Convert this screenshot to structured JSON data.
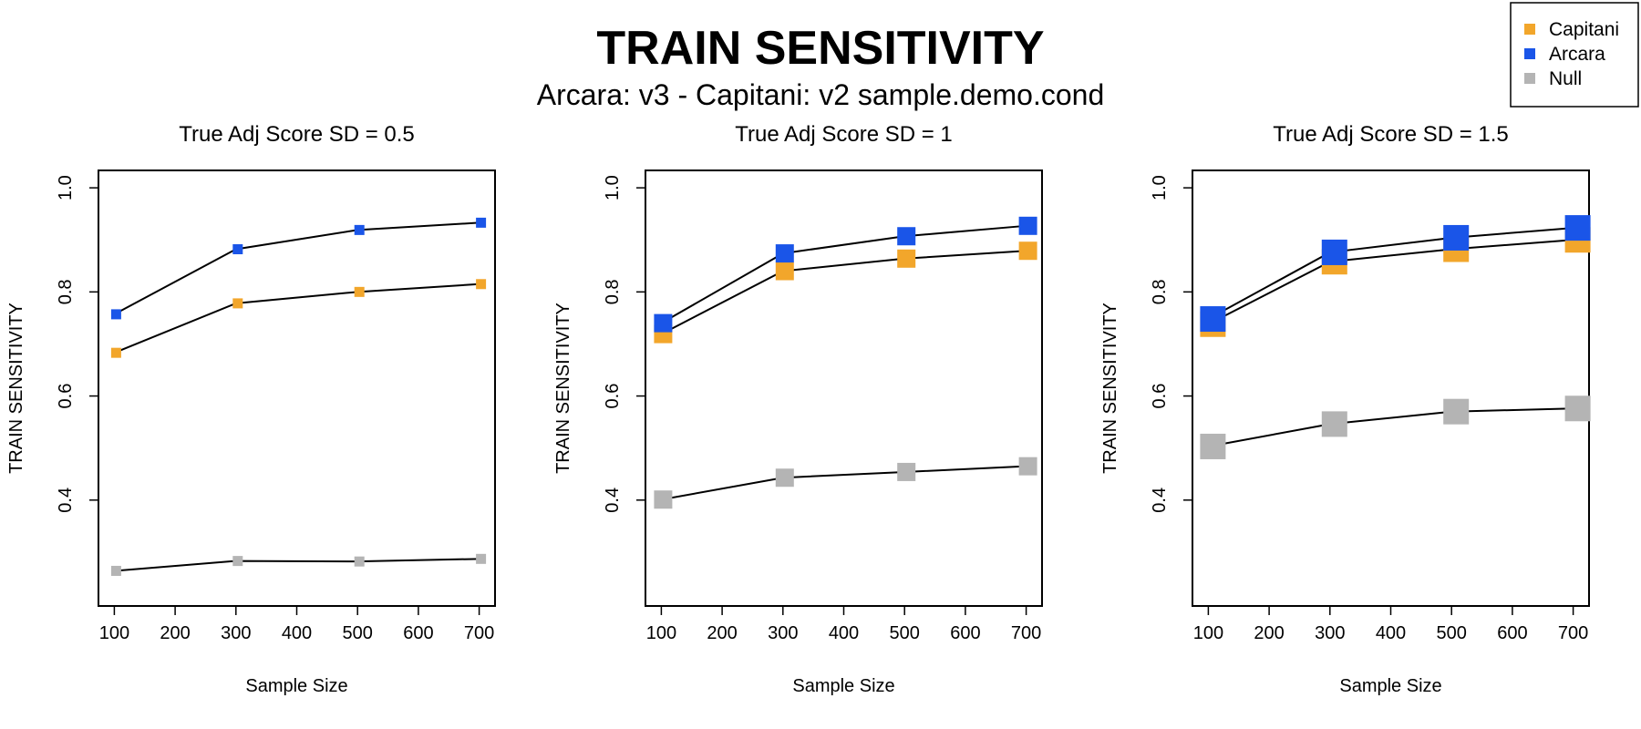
{
  "figure": {
    "title": "TRAIN SENSITIVITY",
    "subtitle": "Arcara: v3 - Capitani: v2 sample.demo.cond"
  },
  "legend": {
    "placement": "top-right",
    "items": [
      {
        "name": "Capitani",
        "color": "#F2A62B"
      },
      {
        "name": "Arcara",
        "color": "#1A55E8"
      },
      {
        "name": "Null",
        "color": "#B4B4B4"
      }
    ]
  },
  "chart_data": [
    {
      "type": "line",
      "title": "True Adj Score SD = 0.5",
      "xlabel": "Sample Size",
      "ylabel": "TRAIN SENSITIVITY",
      "xlim": [
        100,
        700
      ],
      "ylim": [
        0.23,
        1.0
      ],
      "xticks": [
        100,
        200,
        300,
        400,
        500,
        600,
        700
      ],
      "yticks": [
        0.4,
        0.6,
        0.8,
        1.0
      ],
      "ytick_labels": [
        "0.4",
        "0.6",
        "0.8",
        "1.0"
      ],
      "grid": false,
      "marker": "square-small",
      "series": [
        {
          "name": "Arcara",
          "color": "#1A55E8",
          "x": [
            100,
            300,
            500,
            700
          ],
          "y": [
            0.757,
            0.882,
            0.919,
            0.933
          ]
        },
        {
          "name": "Capitani",
          "color": "#F2A62B",
          "x": [
            100,
            300,
            500,
            700
          ],
          "y": [
            0.683,
            0.778,
            0.8,
            0.815
          ]
        },
        {
          "name": "Null",
          "color": "#B4B4B4",
          "x": [
            100,
            300,
            500,
            700
          ],
          "y": [
            0.264,
            0.283,
            0.282,
            0.287
          ]
        }
      ]
    },
    {
      "type": "line",
      "title": "True Adj Score SD = 1",
      "xlabel": "Sample Size",
      "ylabel": "TRAIN SENSITIVITY",
      "xlim": [
        100,
        700
      ],
      "ylim": [
        0.23,
        1.0
      ],
      "xticks": [
        100,
        200,
        300,
        400,
        500,
        600,
        700
      ],
      "yticks": [
        0.4,
        0.6,
        0.8,
        1.0
      ],
      "ytick_labels": [
        "0.4",
        "0.6",
        "0.8",
        "1.0"
      ],
      "grid": false,
      "marker": "square-medium",
      "series": [
        {
          "name": "Arcara",
          "color": "#1A55E8",
          "x": [
            100,
            300,
            500,
            700
          ],
          "y": [
            0.74,
            0.874,
            0.907,
            0.927
          ]
        },
        {
          "name": "Capitani",
          "color": "#F2A62B",
          "x": [
            100,
            300,
            500,
            700
          ],
          "y": [
            0.719,
            0.84,
            0.864,
            0.879
          ]
        },
        {
          "name": "Null",
          "color": "#B4B4B4",
          "x": [
            100,
            300,
            500,
            700
          ],
          "y": [
            0.401,
            0.443,
            0.454,
            0.465
          ]
        }
      ]
    },
    {
      "type": "line",
      "title": "True Adj Score SD = 1.5",
      "xlabel": "Sample Size",
      "ylabel": "TRAIN SENSITIVITY",
      "xlim": [
        100,
        700
      ],
      "ylim": [
        0.23,
        1.0
      ],
      "xticks": [
        100,
        200,
        300,
        400,
        500,
        600,
        700
      ],
      "yticks": [
        0.4,
        0.6,
        0.8,
        1.0
      ],
      "ytick_labels": [
        "0.4",
        "0.6",
        "0.8",
        "1.0"
      ],
      "grid": false,
      "marker": "square-large",
      "series": [
        {
          "name": "Arcara",
          "color": "#1A55E8",
          "x": [
            100,
            300,
            500,
            700
          ],
          "y": [
            0.748,
            0.876,
            0.904,
            0.923
          ]
        },
        {
          "name": "Capitani",
          "color": "#F2A62B",
          "x": [
            100,
            300,
            500,
            700
          ],
          "y": [
            0.738,
            0.858,
            0.882,
            0.9
          ]
        },
        {
          "name": "Null",
          "color": "#B4B4B4",
          "x": [
            100,
            300,
            500,
            700
          ],
          "y": [
            0.503,
            0.546,
            0.57,
            0.576
          ]
        }
      ]
    }
  ]
}
